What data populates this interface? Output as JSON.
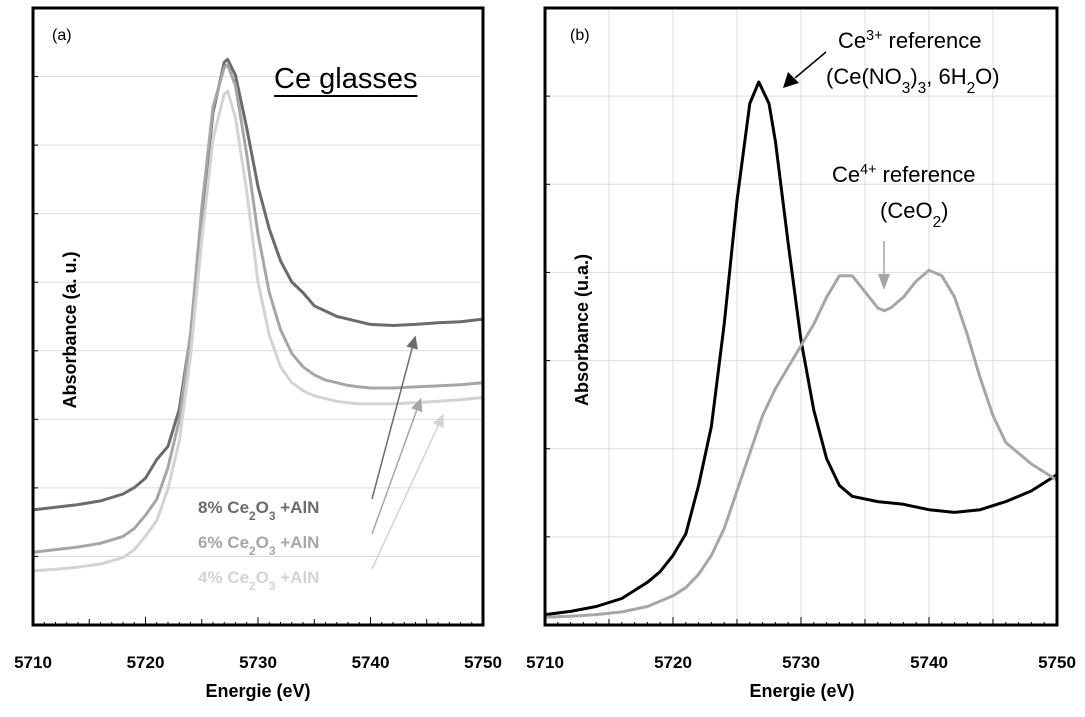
{
  "chart_data": [
    {
      "type": "line",
      "panel_label": "(a)",
      "title": "Ce glasses",
      "xlabel": "Energie (eV)",
      "ylabel": "Absorbance (a. u.)",
      "xlim": [
        5710,
        5750
      ],
      "x_ticks": [
        "5710",
        "5720",
        "5730",
        "5740",
        "5750"
      ],
      "y_ticks_shown": false,
      "grid": "horizontal",
      "series": [
        {
          "prefix": "8%  Ce",
          "sub1": "2",
          "mid": "O",
          "sub2": "3",
          "suffix": " +AlN",
          "color": "#6b6b6b",
          "x": [
            5710,
            5712,
            5714,
            5716,
            5718,
            5719,
            5720,
            5721,
            5722,
            5723,
            5724,
            5725,
            5726,
            5727,
            5727.3,
            5728,
            5729,
            5730,
            5731,
            5732,
            5733,
            5734,
            5735,
            5736,
            5737,
            5738,
            5739,
            5740,
            5742,
            5744,
            5746,
            5748,
            5750
          ],
          "y": [
            0.17,
            0.175,
            0.18,
            0.187,
            0.2,
            0.212,
            0.23,
            0.265,
            0.29,
            0.36,
            0.5,
            0.72,
            0.92,
            1.015,
            1.02,
            0.99,
            0.89,
            0.78,
            0.7,
            0.64,
            0.6,
            0.58,
            0.555,
            0.545,
            0.535,
            0.53,
            0.525,
            0.52,
            0.518,
            0.52,
            0.523,
            0.525,
            0.53
          ]
        },
        {
          "prefix": "6%  Ce",
          "sub1": "2",
          "mid": "O",
          "sub2": "3",
          "suffix": " +AlN",
          "color": "#a6a6a6",
          "x": [
            5710,
            5712,
            5714,
            5716,
            5718,
            5719,
            5720,
            5721,
            5722,
            5723,
            5724,
            5725,
            5726,
            5727,
            5727.3,
            5728,
            5729,
            5730,
            5731,
            5732,
            5733,
            5734,
            5735,
            5736,
            5737,
            5738,
            5739,
            5740,
            5742,
            5744,
            5746,
            5748,
            5750
          ],
          "y": [
            0.09,
            0.095,
            0.1,
            0.107,
            0.12,
            0.135,
            0.16,
            0.19,
            0.25,
            0.34,
            0.5,
            0.74,
            0.93,
            1.005,
            1.01,
            0.97,
            0.84,
            0.69,
            0.58,
            0.51,
            0.465,
            0.44,
            0.425,
            0.415,
            0.41,
            0.405,
            0.402,
            0.4,
            0.4,
            0.402,
            0.404,
            0.406,
            0.41
          ]
        },
        {
          "prefix": "4%  Ce",
          "sub1": "2",
          "mid": "O",
          "sub2": "3",
          "suffix": " +AlN",
          "color": "#d3d3d3",
          "x": [
            5710,
            5712,
            5714,
            5716,
            5718,
            5719,
            5720,
            5721,
            5722,
            5723,
            5724,
            5725,
            5726,
            5727,
            5727.3,
            5728,
            5729,
            5730,
            5731,
            5732,
            5733,
            5734,
            5735,
            5736,
            5737,
            5738,
            5739,
            5740,
            5742,
            5744,
            5746,
            5748,
            5750
          ],
          "y": [
            0.055,
            0.058,
            0.062,
            0.068,
            0.08,
            0.095,
            0.12,
            0.15,
            0.21,
            0.3,
            0.46,
            0.68,
            0.87,
            0.955,
            0.96,
            0.91,
            0.77,
            0.6,
            0.5,
            0.44,
            0.41,
            0.395,
            0.385,
            0.38,
            0.375,
            0.372,
            0.37,
            0.37,
            0.37,
            0.372,
            0.375,
            0.378,
            0.382
          ]
        }
      ]
    },
    {
      "type": "line",
      "panel_label": "(b)",
      "xlabel": "Energie (eV)",
      "ylabel": "Absorbance (u.a.)",
      "xlim": [
        5710,
        5750
      ],
      "x_ticks": [
        "5710",
        "5720",
        "5730",
        "5740",
        "5750"
      ],
      "y_ticks_shown": false,
      "grid": "both",
      "series": [
        {
          "color": "#000000",
          "label_line1_prefix": "Ce",
          "label_line1_sup": "3+",
          "label_line1_suffix": " reference",
          "label_line2_prefix": "(Ce(NO",
          "label_line2_sub1": "3",
          "label_line2_mid": ")",
          "label_line2_sub2": "3",
          "label_line2_mid2": ", 6H",
          "label_line2_sub3": "2",
          "label_line2_suffix": "O)",
          "x": [
            5710,
            5712,
            5714,
            5716,
            5718,
            5719,
            5720,
            5721,
            5722,
            5723,
            5724,
            5725,
            5726,
            5726.7,
            5727.5,
            5728,
            5729,
            5730,
            5731,
            5732,
            5733,
            5734,
            5736,
            5738,
            5740,
            5742,
            5744,
            5746,
            5748,
            5750
          ],
          "y": [
            0.01,
            0.016,
            0.025,
            0.04,
            0.07,
            0.09,
            0.12,
            0.16,
            0.25,
            0.36,
            0.55,
            0.78,
            0.96,
            1.0,
            0.96,
            0.89,
            0.7,
            0.52,
            0.39,
            0.3,
            0.25,
            0.23,
            0.22,
            0.215,
            0.205,
            0.2,
            0.205,
            0.22,
            0.24,
            0.27
          ]
        },
        {
          "color": "#a6a6a6",
          "label_line1_prefix": "Ce",
          "label_line1_sup": "4+",
          "label_line1_suffix": " reference",
          "label_line2_prefix": "(CeO",
          "label_line2_sub1": "2",
          "label_line2_suffix": ")",
          "x": [
            5710,
            5712,
            5714,
            5716,
            5718,
            5720,
            5721,
            5722,
            5723,
            5724,
            5725,
            5726,
            5727,
            5728,
            5729,
            5730,
            5731,
            5732,
            5733,
            5734,
            5735,
            5736,
            5736.5,
            5737,
            5738,
            5739,
            5740,
            5741,
            5742,
            5743,
            5744,
            5745,
            5746,
            5748,
            5750
          ],
          "y": [
            0.005,
            0.007,
            0.01,
            0.015,
            0.025,
            0.045,
            0.06,
            0.085,
            0.12,
            0.17,
            0.24,
            0.31,
            0.38,
            0.43,
            0.47,
            0.51,
            0.55,
            0.6,
            0.64,
            0.64,
            0.61,
            0.58,
            0.575,
            0.58,
            0.6,
            0.63,
            0.65,
            0.64,
            0.6,
            0.53,
            0.45,
            0.38,
            0.33,
            0.29,
            0.26
          ]
        }
      ]
    }
  ]
}
